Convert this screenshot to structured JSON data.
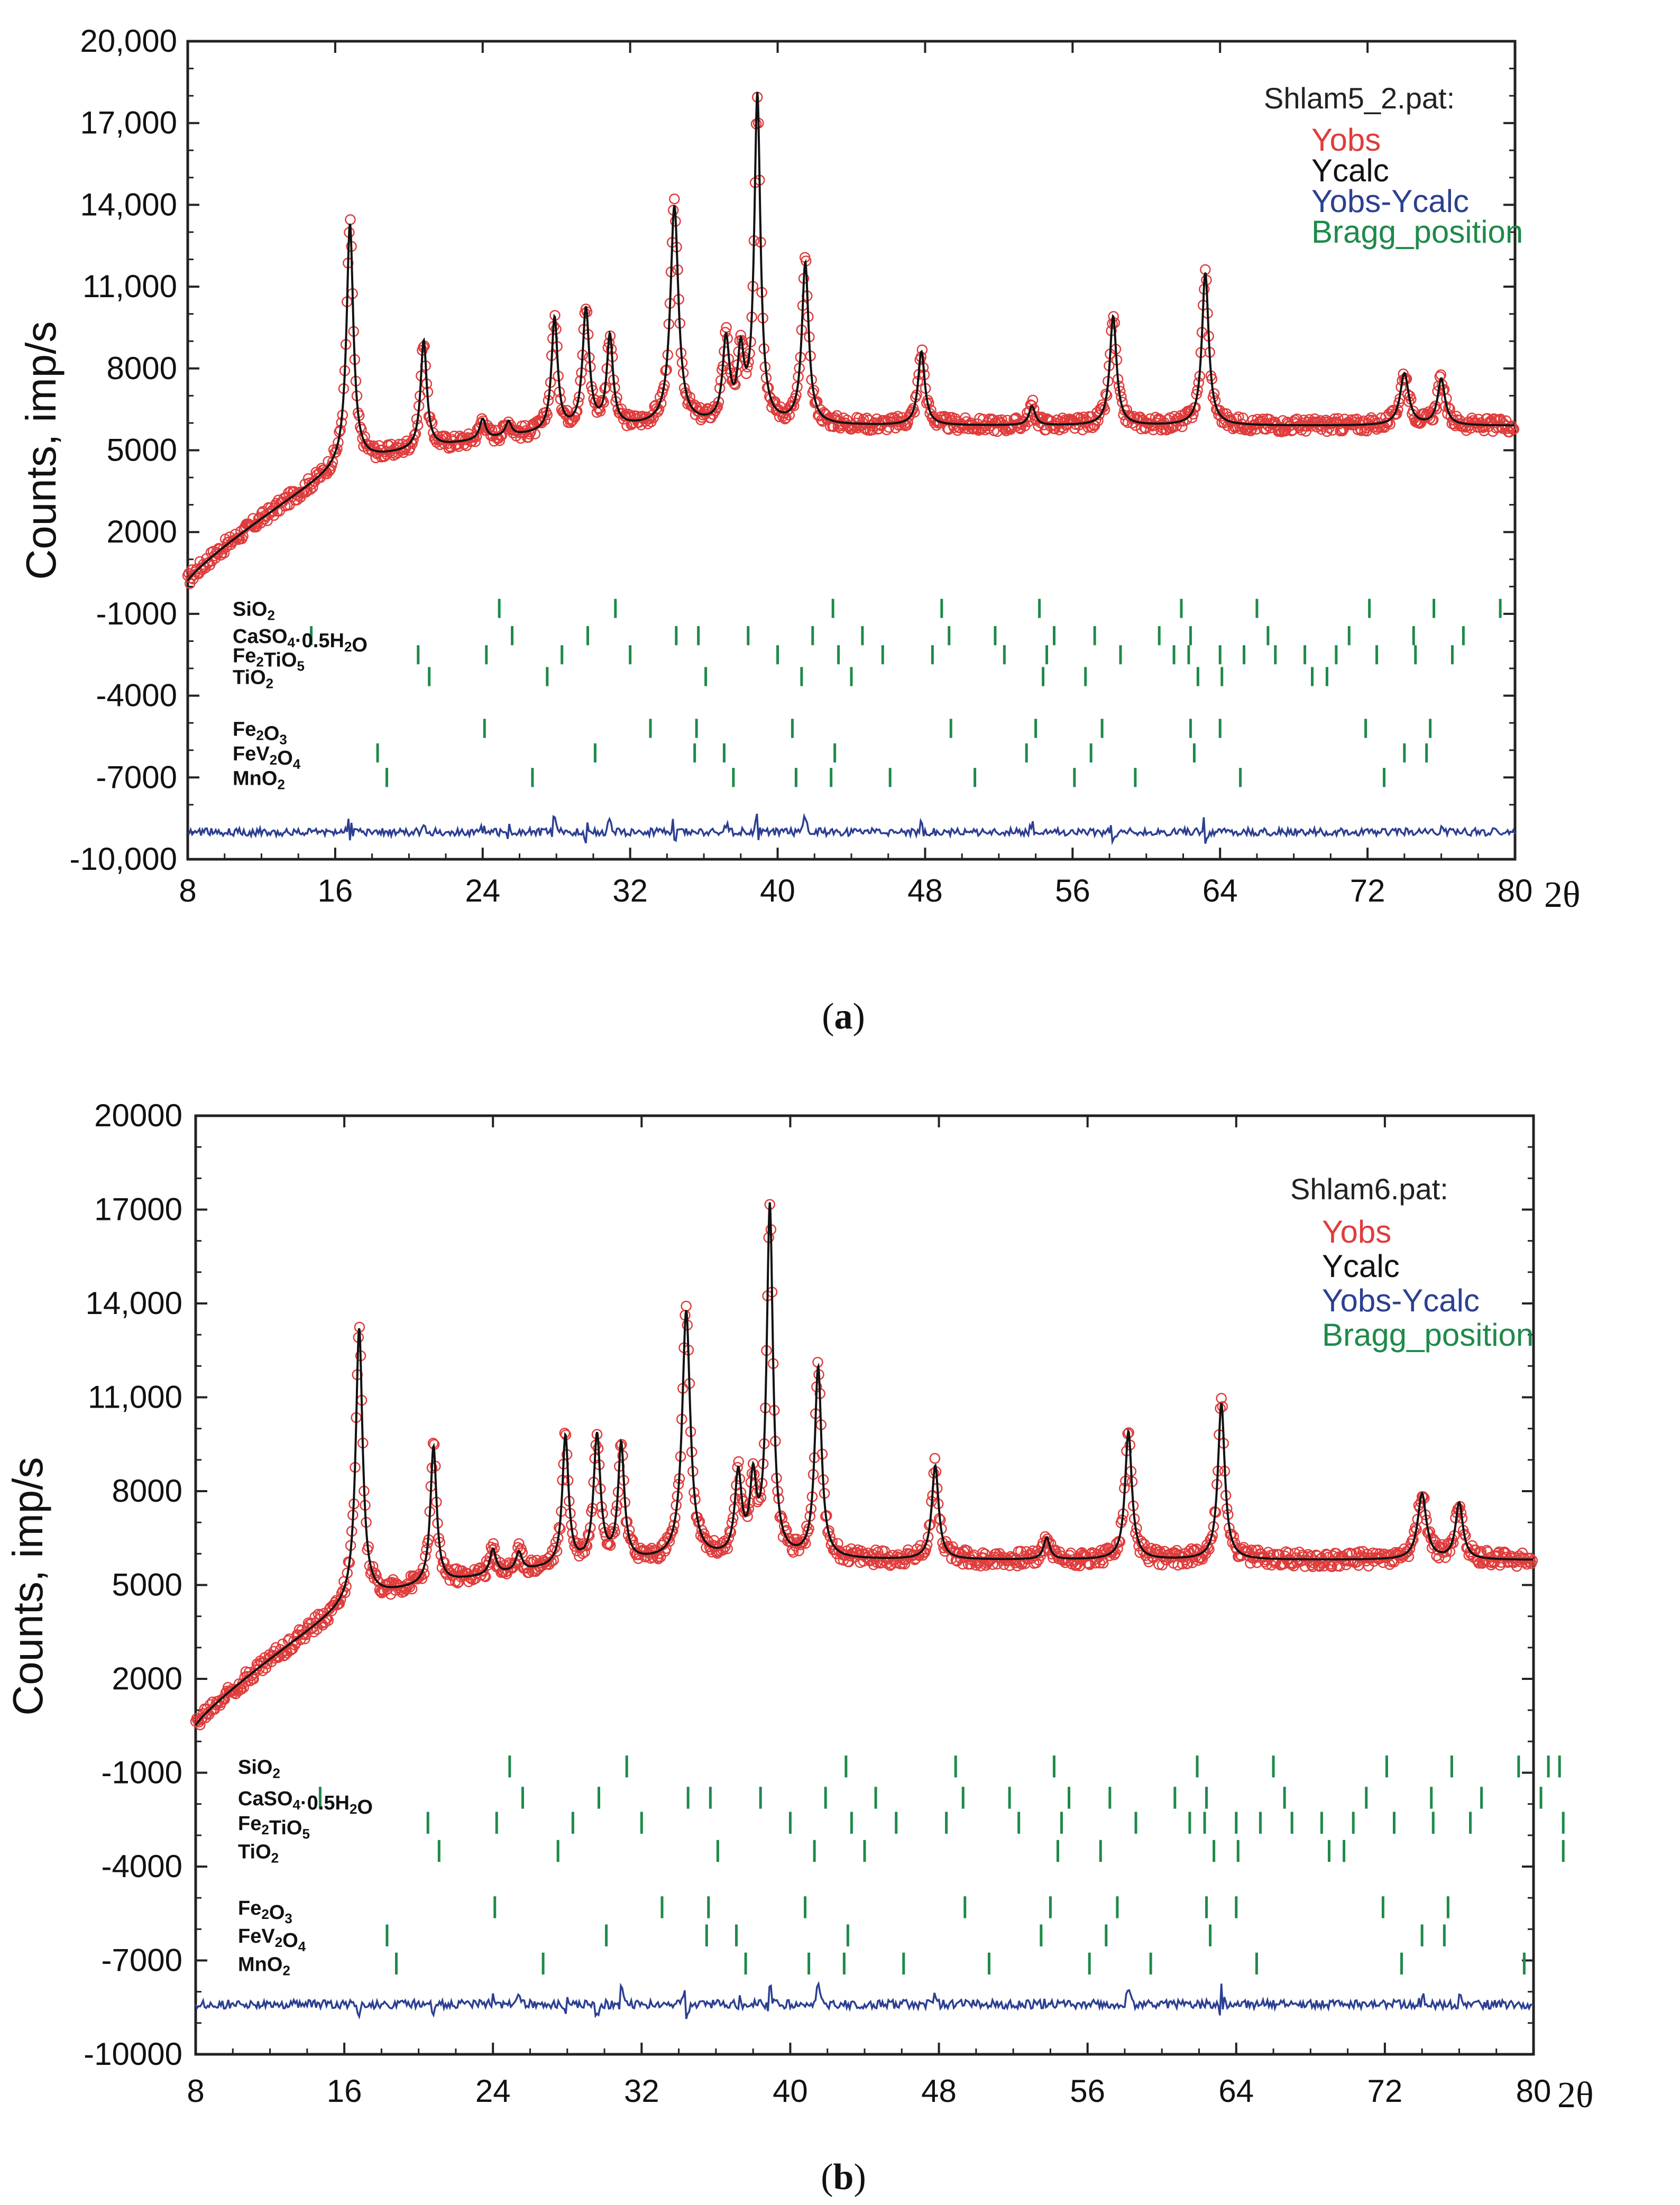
{
  "chart_data": [
    {
      "type": "line",
      "panel": "a",
      "caption": "a",
      "title": "Shlam5_2.pat:",
      "xlabel": "2θ",
      "ylabel": "Counts, imp/s",
      "xlim": [
        8,
        80
      ],
      "ylim": [
        -10000,
        20000
      ],
      "x_ticks": [
        8,
        16,
        24,
        32,
        40,
        48,
        56,
        64,
        72,
        80
      ],
      "y_ticks": [
        {
          "value": 20000,
          "label": "20,000"
        },
        {
          "value": 17000,
          "label": "17,000"
        },
        {
          "value": 14000,
          "label": "14,000"
        },
        {
          "value": 11000,
          "label": "11,000"
        },
        {
          "value": 8000,
          "label": "8000"
        },
        {
          "value": 5000,
          "label": "5000"
        },
        {
          "value": 2000,
          "label": "2000"
        },
        {
          "value": -1000,
          "label": "-1000"
        },
        {
          "value": -4000,
          "label": "-4000"
        },
        {
          "value": -7000,
          "label": "-7000"
        },
        {
          "value": -10000,
          "label": "-10,000"
        }
      ],
      "legend": [
        {
          "name": "Yobs",
          "color": "#e03c3c"
        },
        {
          "name": "Ycalc",
          "color": "#111111"
        },
        {
          "name": "Yobs-Ycalc",
          "color": "#2c3f92"
        },
        {
          "name": "Bragg_position",
          "color": "#1e8a4a"
        }
      ],
      "baseline": {
        "start": 200,
        "mid_x": 16.5,
        "mid_y": 4500,
        "plateau": 5900
      },
      "diff_offset": -9000,
      "peaks": [
        {
          "x": 16.8,
          "y": 13300,
          "w": 0.22
        },
        {
          "x": 20.8,
          "y": 9000,
          "w": 0.2
        },
        {
          "x": 24.0,
          "y": 6100,
          "w": 0.2
        },
        {
          "x": 25.4,
          "y": 6000,
          "w": 0.2
        },
        {
          "x": 27.9,
          "y": 9800,
          "w": 0.2
        },
        {
          "x": 29.6,
          "y": 10100,
          "w": 0.22
        },
        {
          "x": 30.9,
          "y": 9100,
          "w": 0.2
        },
        {
          "x": 34.4,
          "y": 13900,
          "w": 0.26
        },
        {
          "x": 37.2,
          "y": 8900,
          "w": 0.22
        },
        {
          "x": 38.0,
          "y": 8300,
          "w": 0.2
        },
        {
          "x": 38.9,
          "y": 17900,
          "w": 0.2
        },
        {
          "x": 41.5,
          "y": 11800,
          "w": 0.22
        },
        {
          "x": 47.8,
          "y": 8600,
          "w": 0.22
        },
        {
          "x": 53.8,
          "y": 6600,
          "w": 0.2
        },
        {
          "x": 58.2,
          "y": 9900,
          "w": 0.22
        },
        {
          "x": 63.2,
          "y": 11500,
          "w": 0.22
        },
        {
          "x": 74.0,
          "y": 7800,
          "w": 0.28
        },
        {
          "x": 76.0,
          "y": 7600,
          "w": 0.24
        }
      ],
      "phases": [
        {
          "label": "SiO2",
          "y": -800,
          "positions": [
            24.9,
            31.2,
            43.0,
            48.9,
            54.2,
            61.9,
            66.0,
            72.1,
            75.6,
            79.2
          ]
        },
        {
          "label": "CaSO4·0.5H2O",
          "y": -1800,
          "positions": [
            14.7,
            25.6,
            29.7,
            34.5,
            35.7,
            38.4,
            41.9,
            44.6,
            49.3,
            51.8,
            55.0,
            57.2,
            60.7,
            62.4,
            66.6,
            71.0,
            74.5,
            77.2
          ]
        },
        {
          "label": "Fe2TiO5",
          "y": -2500,
          "positions": [
            20.5,
            24.2,
            28.3,
            32.0,
            40.0,
            43.3,
            45.7,
            48.4,
            52.3,
            54.6,
            58.6,
            61.5,
            62.3,
            64.0,
            65.3,
            67.0,
            68.6,
            70.3,
            72.5,
            74.6,
            76.6
          ]
        },
        {
          "label": "TiO2",
          "y": -3300,
          "positions": [
            21.1,
            27.5,
            36.1,
            41.3,
            44.0,
            54.4,
            56.7,
            62.8,
            64.1,
            69.0,
            69.8
          ]
        },
        {
          "label": "Fe2O3",
          "y": -5200,
          "positions": [
            24.1,
            33.1,
            35.6,
            40.8,
            49.4,
            54.0,
            57.6,
            62.4,
            64.0,
            71.9,
            75.4
          ]
        },
        {
          "label": "FeV2O4",
          "y": -6100,
          "positions": [
            18.3,
            30.1,
            35.5,
            37.1,
            43.1,
            53.5,
            57.0,
            62.6,
            74.0,
            75.2
          ]
        },
        {
          "label": "MnO2",
          "y": -7000,
          "positions": [
            18.8,
            26.7,
            37.6,
            41.0,
            42.9,
            46.1,
            50.7,
            56.1,
            59.4,
            65.1,
            72.9
          ]
        }
      ]
    },
    {
      "type": "line",
      "panel": "b",
      "caption": "b",
      "title": "Shlam6.pat:",
      "xlabel": "2θ",
      "ylabel": "Counts, imp/s",
      "xlim": [
        8,
        80
      ],
      "ylim": [
        -10000,
        20000
      ],
      "x_ticks": [
        8,
        16,
        24,
        32,
        40,
        48,
        56,
        64,
        72,
        80
      ],
      "y_ticks": [
        {
          "value": 20000,
          "label": "20000"
        },
        {
          "value": 17000,
          "label": "17000"
        },
        {
          "value": 14000,
          "label": "14,000"
        },
        {
          "value": 11000,
          "label": "11,000"
        },
        {
          "value": 8000,
          "label": "8000"
        },
        {
          "value": 5000,
          "label": "5000"
        },
        {
          "value": 2000,
          "label": "2000"
        },
        {
          "value": -1000,
          "label": "-1000"
        },
        {
          "value": -4000,
          "label": "-4000"
        },
        {
          "value": -7000,
          "label": "-7000"
        },
        {
          "value": -10000,
          "label": "-10000"
        }
      ],
      "legend": [
        {
          "name": "Yobs",
          "color": "#e03c3c"
        },
        {
          "name": "Ycalc",
          "color": "#111111"
        },
        {
          "name": "Yobs-Ycalc",
          "color": "#2c3f92"
        },
        {
          "name": "Bragg_position",
          "color": "#1e8a4a"
        }
      ],
      "baseline": {
        "start": 500,
        "mid_x": 16.5,
        "mid_y": 4500,
        "plateau": 5800
      },
      "diff_offset": -8400,
      "peaks": [
        {
          "x": 16.8,
          "y": 13200,
          "w": 0.22
        },
        {
          "x": 20.8,
          "y": 9400,
          "w": 0.2
        },
        {
          "x": 24.0,
          "y": 6100,
          "w": 0.2
        },
        {
          "x": 25.4,
          "y": 6000,
          "w": 0.2
        },
        {
          "x": 27.9,
          "y": 9700,
          "w": 0.2
        },
        {
          "x": 29.6,
          "y": 9700,
          "w": 0.22
        },
        {
          "x": 30.9,
          "y": 9400,
          "w": 0.2
        },
        {
          "x": 34.4,
          "y": 13700,
          "w": 0.26
        },
        {
          "x": 37.2,
          "y": 8400,
          "w": 0.22
        },
        {
          "x": 38.0,
          "y": 8100,
          "w": 0.2
        },
        {
          "x": 38.9,
          "y": 17000,
          "w": 0.2
        },
        {
          "x": 41.5,
          "y": 11900,
          "w": 0.22
        },
        {
          "x": 47.8,
          "y": 8800,
          "w": 0.22
        },
        {
          "x": 53.8,
          "y": 6500,
          "w": 0.2
        },
        {
          "x": 58.2,
          "y": 9900,
          "w": 0.22
        },
        {
          "x": 63.2,
          "y": 10800,
          "w": 0.22
        },
        {
          "x": 74.0,
          "y": 7900,
          "w": 0.28
        },
        {
          "x": 76.0,
          "y": 7600,
          "w": 0.24
        }
      ],
      "phases": [
        {
          "label": "SiO2",
          "y": -800,
          "positions": [
            24.9,
            31.2,
            43.0,
            48.9,
            54.2,
            61.9,
            66.0,
            72.1,
            75.6,
            79.2,
            80.8,
            81.4
          ]
        },
        {
          "label": "CaSO4·0.5H2O",
          "y": -1800,
          "positions": [
            14.7,
            25.6,
            29.7,
            34.5,
            35.7,
            38.4,
            41.9,
            44.6,
            49.3,
            51.8,
            55.0,
            57.2,
            60.7,
            62.4,
            66.6,
            71.0,
            74.5,
            77.2,
            80.4
          ]
        },
        {
          "label": "Fe2TiO5",
          "y": -2600,
          "positions": [
            20.5,
            24.2,
            28.3,
            32.0,
            40.0,
            43.3,
            45.7,
            48.4,
            52.3,
            54.6,
            58.6,
            61.5,
            62.3,
            64.0,
            65.3,
            67.0,
            68.6,
            70.3,
            72.5,
            74.6,
            76.6,
            81.6
          ]
        },
        {
          "label": "TiO2",
          "y": -3500,
          "positions": [
            21.1,
            27.5,
            36.1,
            41.3,
            44.0,
            54.4,
            56.7,
            62.8,
            64.1,
            69.0,
            69.8,
            81.6
          ]
        },
        {
          "label": "Fe2O3",
          "y": -5300,
          "positions": [
            24.1,
            33.1,
            35.6,
            40.8,
            49.4,
            54.0,
            57.6,
            62.4,
            64.0,
            71.9,
            75.4
          ]
        },
        {
          "label": "FeV2O4",
          "y": -6200,
          "positions": [
            18.3,
            30.1,
            35.5,
            37.1,
            43.1,
            53.5,
            57.0,
            62.6,
            74.0,
            75.2
          ]
        },
        {
          "label": "MnO2",
          "y": -7100,
          "positions": [
            18.8,
            26.7,
            37.6,
            41.0,
            42.9,
            46.1,
            50.7,
            56.1,
            59.4,
            65.1,
            72.9,
            79.5
          ]
        }
      ]
    }
  ]
}
